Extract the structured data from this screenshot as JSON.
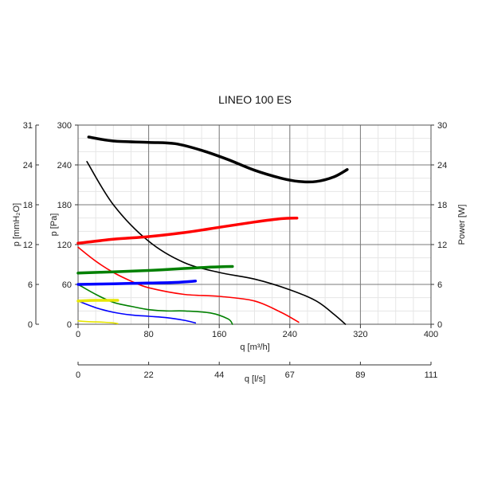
{
  "chart_data": {
    "type": "line",
    "title": "LINEO 100 ES",
    "x_axis": {
      "label": "q [m³/h]",
      "range": [
        0,
        400
      ],
      "ticks": [
        0,
        80,
        160,
        240,
        320,
        400
      ]
    },
    "x2_axis": {
      "label": "q [l/s]",
      "ticks": [
        "0",
        "22",
        "44",
        "67",
        "89",
        "111"
      ]
    },
    "y_axis": {
      "label": "p [Pa]",
      "range": [
        0,
        300
      ],
      "ticks": [
        0,
        60,
        120,
        180,
        240,
        300
      ]
    },
    "y_outer_axis": {
      "label": "p [mmH₂O]",
      "ticks": [
        "0",
        "6",
        "12",
        "18",
        "24",
        "31"
      ]
    },
    "y_right_axis": {
      "label": "Power [W]",
      "range": [
        0,
        30
      ],
      "ticks": [
        0,
        6,
        12,
        18,
        24,
        30
      ]
    },
    "grid": true,
    "series": [
      {
        "color": "#000000",
        "kind": "pressure",
        "axis": "pressure",
        "x": [
          10,
          40,
          80,
          120,
          160,
          200,
          240,
          270,
          290,
          303
        ],
        "y": [
          245,
          180,
          125,
          93,
          78,
          68,
          52,
          35,
          15,
          0
        ]
      },
      {
        "color": "#ff0000",
        "kind": "pressure",
        "axis": "pressure",
        "x": [
          0,
          20,
          40,
          60,
          80,
          120,
          160,
          200,
          230,
          250
        ],
        "y": [
          116,
          95,
          78,
          65,
          55,
          45,
          42,
          35,
          18,
          3
        ]
      },
      {
        "color": "#008000",
        "kind": "pressure",
        "axis": "pressure",
        "x": [
          0,
          20,
          40,
          60,
          80,
          100,
          120,
          150,
          170,
          175
        ],
        "y": [
          60,
          45,
          33,
          27,
          22,
          20,
          20,
          17,
          8,
          0
        ]
      },
      {
        "color": "#0000ff",
        "kind": "pressure",
        "axis": "pressure",
        "x": [
          0,
          20,
          40,
          60,
          80,
          100,
          120,
          133
        ],
        "y": [
          35,
          25,
          18,
          14,
          12,
          10,
          6,
          2
        ]
      },
      {
        "color": "#e6e600",
        "kind": "pressure",
        "axis": "pressure",
        "x": [
          0,
          10,
          20,
          30,
          40,
          45
        ],
        "y": [
          5,
          4,
          3.5,
          3,
          2,
          1
        ]
      },
      {
        "color": "#000000",
        "kind": "power",
        "axis": "power",
        "x": [
          12,
          40,
          80,
          110,
          140,
          170,
          200,
          230,
          250,
          270,
          290,
          305
        ],
        "y": [
          28.2,
          27.6,
          27.4,
          27.2,
          26.2,
          24.8,
          23.2,
          22.0,
          21.5,
          21.5,
          22.2,
          23.3
        ]
      },
      {
        "color": "#ff0000",
        "kind": "power",
        "axis": "power",
        "x": [
          0,
          40,
          80,
          120,
          160,
          200,
          230,
          248
        ],
        "y": [
          12.2,
          12.8,
          13.2,
          13.8,
          14.6,
          15.4,
          15.9,
          16.0
        ]
      },
      {
        "color": "#008000",
        "kind": "power",
        "axis": "power",
        "x": [
          0,
          40,
          80,
          120,
          150,
          175
        ],
        "y": [
          7.7,
          7.9,
          8.1,
          8.4,
          8.6,
          8.7
        ]
      },
      {
        "color": "#0000ff",
        "kind": "power",
        "axis": "power",
        "x": [
          0,
          40,
          80,
          110,
          133
        ],
        "y": [
          6.0,
          6.1,
          6.2,
          6.3,
          6.5
        ]
      },
      {
        "color": "#e6e600",
        "kind": "power",
        "axis": "power",
        "x": [
          0,
          20,
          45
        ],
        "y": [
          3.5,
          3.6,
          3.6
        ]
      }
    ]
  }
}
